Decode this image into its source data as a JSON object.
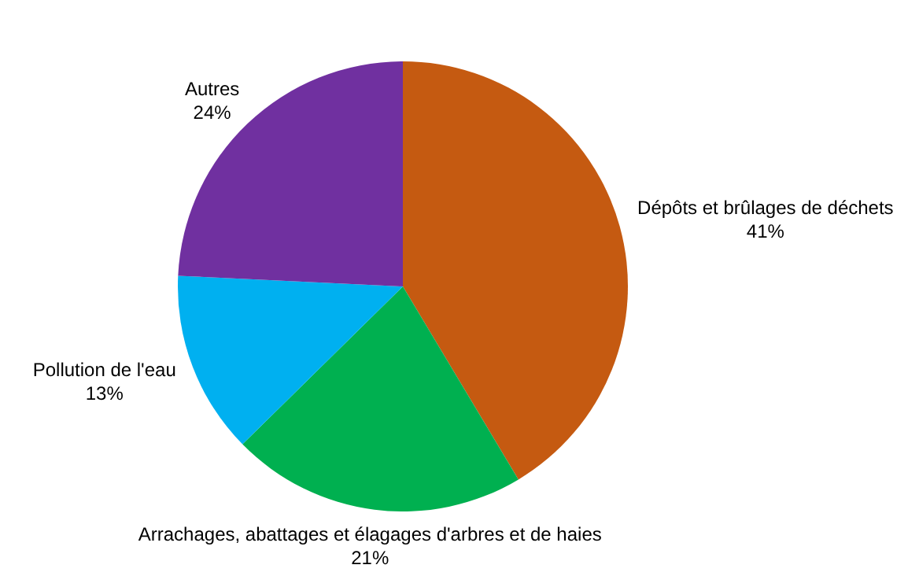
{
  "chart_data": {
    "type": "pie",
    "categories": [
      "Dépôts et brûlages de déchets",
      "Arrachages, abattages et élagages d'arbres et de haies",
      "Pollution de l'eau",
      "Autres"
    ],
    "values": [
      41,
      21,
      13,
      24
    ],
    "value_labels": [
      "41%",
      "21%",
      "13%",
      "24%"
    ],
    "colors": [
      "#c55a11",
      "#00b050",
      "#00b0f0",
      "#7030a0"
    ]
  }
}
